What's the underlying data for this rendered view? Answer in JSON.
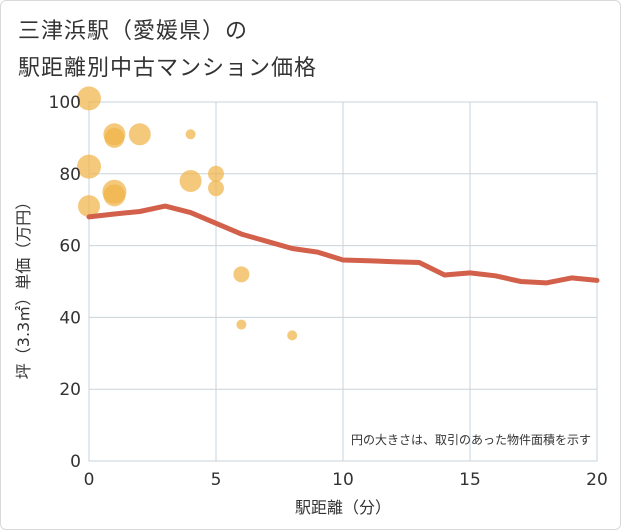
{
  "title": {
    "line1": "三津浜駅（愛媛県）の",
    "line2": "駅距離別中古マンション価格"
  },
  "chart_data": {
    "type": "scatter",
    "xlabel": "駅距離（分）",
    "ylabel": "坪（3.3㎡）単価（万円）",
    "xlim": [
      0,
      20
    ],
    "ylim": [
      0,
      100
    ],
    "xticks": [
      0,
      5,
      10,
      15,
      20
    ],
    "yticks": [
      0,
      20,
      40,
      60,
      80,
      100
    ],
    "annotation": "円の大きさは、取引のあった物件面積を示す",
    "colors": {
      "bubble": "#f0b44a",
      "trend": "#d2604a",
      "grid": "#c9d3dc",
      "axis_text": "#333333"
    },
    "bubbles": [
      {
        "x": 0,
        "y": 101,
        "size": 12
      },
      {
        "x": 0,
        "y": 82,
        "size": 12
      },
      {
        "x": 0,
        "y": 71,
        "size": 11
      },
      {
        "x": 1,
        "y": 91,
        "size": 11
      },
      {
        "x": 1,
        "y": 90,
        "size": 10
      },
      {
        "x": 1,
        "y": 75,
        "size": 12
      },
      {
        "x": 1,
        "y": 74,
        "size": 11
      },
      {
        "x": 2,
        "y": 91,
        "size": 11
      },
      {
        "x": 4,
        "y": 91,
        "size": 5
      },
      {
        "x": 4,
        "y": 78,
        "size": 11
      },
      {
        "x": 5,
        "y": 80,
        "size": 8
      },
      {
        "x": 5,
        "y": 76,
        "size": 8
      },
      {
        "x": 6,
        "y": 52,
        "size": 8
      },
      {
        "x": 6,
        "y": 38,
        "size": 5
      },
      {
        "x": 8,
        "y": 35,
        "size": 5
      }
    ],
    "trend": {
      "x": [
        0,
        1,
        2,
        3,
        4,
        5,
        6,
        7,
        8,
        9,
        10,
        11,
        12,
        13,
        14,
        15,
        16,
        17,
        18,
        19,
        20
      ],
      "y": [
        68,
        68.8,
        69.5,
        71,
        69.2,
        66.2,
        63.2,
        61.2,
        59.2,
        58.2,
        56.0,
        55.8,
        55.5,
        55.3,
        51.8,
        52.4,
        51.6,
        50.0,
        49.6,
        51.0,
        50.3
      ]
    }
  }
}
